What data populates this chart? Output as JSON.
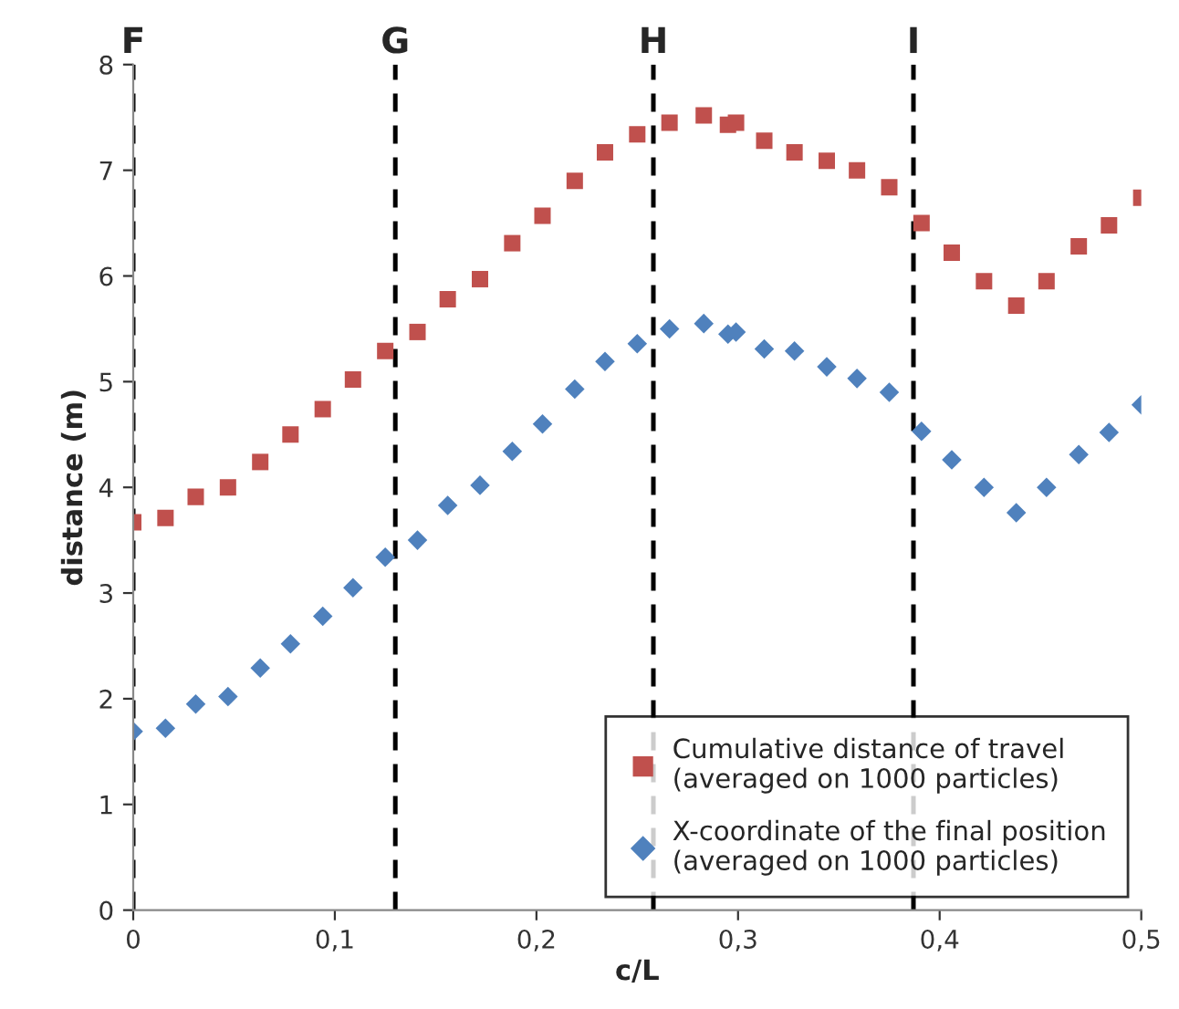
{
  "chart_data": {
    "type": "scatter",
    "xlabel": "c/L",
    "ylabel": "distance (m)",
    "x": [
      0,
      0.016,
      0.031,
      0.047,
      0.063,
      0.078,
      0.094,
      0.109,
      0.125,
      0.141,
      0.156,
      0.172,
      0.188,
      0.203,
      0.219,
      0.234,
      0.25,
      0.266,
      0.283,
      0.295,
      0.299,
      0.313,
      0.328,
      0.344,
      0.359,
      0.375,
      0.391,
      0.406,
      0.422,
      0.438,
      0.453,
      0.469,
      0.484,
      0.5
    ],
    "series": [
      {
        "name": "Cumulative distance of travel\n(averaged on 1000 particles)",
        "color": "#c0504d",
        "marker": "square",
        "values": [
          3.67,
          3.71,
          3.91,
          4.0,
          4.24,
          4.5,
          4.74,
          5.02,
          5.29,
          5.47,
          5.78,
          5.97,
          6.31,
          6.57,
          6.9,
          7.17,
          7.34,
          7.45,
          7.52,
          7.43,
          7.45,
          7.28,
          7.17,
          7.09,
          7.0,
          6.84,
          6.5,
          6.22,
          5.95,
          5.72,
          5.95,
          6.28,
          6.48,
          6.74
        ]
      },
      {
        "name": "X-coordinate of the final position\n(averaged on 1000 particles)",
        "color": "#4f81bd",
        "marker": "diamond",
        "values": [
          1.69,
          1.72,
          1.95,
          2.02,
          2.29,
          2.52,
          2.78,
          3.05,
          3.34,
          3.5,
          3.83,
          4.02,
          4.34,
          4.6,
          4.93,
          5.19,
          5.36,
          5.5,
          5.55,
          5.45,
          5.47,
          5.31,
          5.29,
          5.14,
          5.03,
          4.9,
          4.53,
          4.26,
          4.0,
          3.76,
          4.0,
          4.31,
          4.52,
          4.78
        ]
      }
    ],
    "xlim": [
      0,
      0.5
    ],
    "ylim": [
      0,
      8
    ],
    "xticks": [
      0,
      {
        "value": 0.1,
        "label": "0,1"
      },
      {
        "value": 0.2,
        "label": "0,2"
      },
      {
        "value": 0.3,
        "label": "0,3"
      },
      {
        "value": 0.4,
        "label": "0,4"
      },
      {
        "value": 0.5,
        "label": "0,5"
      }
    ],
    "yticks": [
      0,
      1,
      2,
      3,
      4,
      5,
      6,
      7,
      8
    ],
    "ref_lines": [
      {
        "axis": "x",
        "value": 0,
        "label": "F",
        "color": "#000000",
        "line_style": "dashed"
      },
      {
        "axis": "x",
        "value": 0.13,
        "label": "G",
        "color": "#000000",
        "line_style": "dashed"
      },
      {
        "axis": "x",
        "value": 0.258,
        "label": "H",
        "color": "#000000",
        "line_style": "dashed"
      },
      {
        "axis": "x",
        "value": 0.387,
        "label": "I",
        "color": "#000000",
        "line_style": "dashed"
      }
    ],
    "grid": false,
    "legend": "bottom right"
  }
}
